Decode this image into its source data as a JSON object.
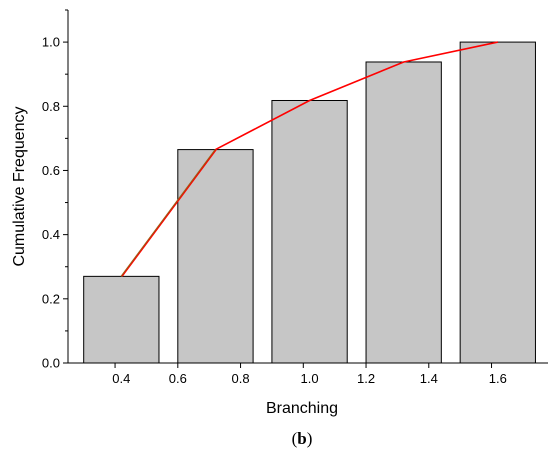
{
  "chart_data": {
    "type": "bar",
    "title": "",
    "xlabel": "Branching",
    "ylabel": "Cumulative Frequency",
    "panel_label": "(b)",
    "panel_label_letter": "b",
    "x_tick_labels": [
      "0.4",
      "0.6",
      "0.8",
      "1.0",
      "1.2",
      "1.4",
      "1.6"
    ],
    "y_tick_labels": [
      "0.0",
      "0.2",
      "0.4",
      "0.6",
      "0.8",
      "1.0"
    ],
    "ylim": [
      0.0,
      1.1
    ],
    "grid": false,
    "categories": [
      "0.4",
      "0.8",
      "1.0",
      "1.4",
      "1.6"
    ],
    "bars": [
      {
        "x_start": 0.3,
        "x_end": 0.54,
        "value": 0.27
      },
      {
        "x_start": 0.6,
        "x_end": 0.84,
        "value": 0.665
      },
      {
        "x_start": 0.9,
        "x_end": 1.14,
        "value": 0.818
      },
      {
        "x_start": 1.2,
        "x_end": 1.44,
        "value": 0.938
      },
      {
        "x_start": 1.5,
        "x_end": 1.74,
        "value": 1.0
      }
    ],
    "line": {
      "x": [
        0.42,
        0.72,
        1.02,
        1.32,
        1.62
      ],
      "y": [
        0.27,
        0.665,
        0.818,
        0.938,
        1.0
      ]
    },
    "colors": {
      "bar_fill": "#c6c6c6",
      "bar_stroke": "#000000",
      "line": "#ff0000",
      "line_head": "#a05a14",
      "axis": "#000000"
    }
  }
}
